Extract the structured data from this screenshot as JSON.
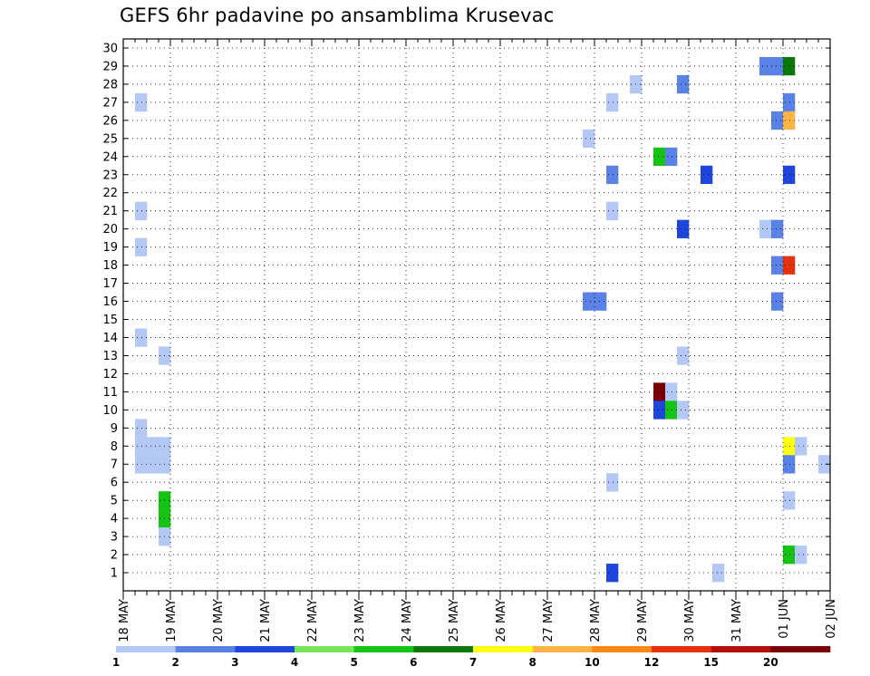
{
  "chart_data": {
    "type": "heatmap",
    "title": "GEFS 6hr padavine po ansamblima Krusevac",
    "y_ticks": [
      "1",
      "2",
      "3",
      "4",
      "5",
      "6",
      "7",
      "8",
      "9",
      "10",
      "11",
      "12",
      "13",
      "14",
      "15",
      "16",
      "17",
      "18",
      "19",
      "20",
      "21",
      "22",
      "23",
      "24",
      "25",
      "26",
      "27",
      "28",
      "29",
      "30"
    ],
    "x_ticks": [
      "18 MAY",
      "19 MAY",
      "20 MAY",
      "21 MAY",
      "22 MAY",
      "23 MAY",
      "24 MAY",
      "25 MAY",
      "26 MAY",
      "27 MAY",
      "28 MAY",
      "29 MAY",
      "30 MAY",
      "31 MAY",
      "01 JUN",
      "02 JUN"
    ],
    "grid": true,
    "colorbar": {
      "labels": [
        "1",
        "2",
        "3",
        "4",
        "5",
        "6",
        "7",
        "8",
        "10",
        "12",
        "15",
        "20"
      ],
      "colors": [
        "#b4c8f5",
        "#5a82e6",
        "#1e46dc",
        "#78e65a",
        "#14c314",
        "#0a780a",
        "#ffff14",
        "#ffb446",
        "#ff8714",
        "#e6320a",
        "#b40f0a",
        "#780000"
      ]
    },
    "x_steps_per_day": 4,
    "cells": [
      [
        30,
        80,
        "#0a780a"
      ],
      [
        30,
        81,
        "#b4c8f5"
      ],
      [
        30,
        123,
        "#b4c8f5"
      ],
      [
        30,
        124,
        "#ffb446"
      ],
      [
        30,
        125,
        "#5a82e6"
      ],
      [
        30,
        126,
        "#14c314"
      ],
      [
        30,
        127,
        "#ffff14"
      ],
      [
        30,
        128,
        "#b4c8f5"
      ],
      [
        30,
        131,
        "#b4c8f5"
      ],
      [
        30,
        132,
        "#5a82e6"
      ],
      [
        29,
        54,
        "#5a82e6"
      ],
      [
        29,
        55,
        "#5a82e6"
      ],
      [
        29,
        56,
        "#0a780a"
      ],
      [
        29,
        89,
        "#1e46dc"
      ],
      [
        29,
        97,
        "#5a82e6"
      ],
      [
        29,
        104,
        "#78e65a"
      ],
      [
        29,
        105,
        "#14c314"
      ],
      [
        29,
        126,
        "#78e65a"
      ],
      [
        29,
        129,
        "#ffff14"
      ],
      [
        29,
        133,
        "#ffb446"
      ],
      [
        29,
        134,
        "#780000"
      ],
      [
        28,
        43,
        "#b4c8f5"
      ],
      [
        28,
        47,
        "#5a82e6"
      ],
      [
        28,
        72,
        "#b4c8f5"
      ],
      [
        28,
        80,
        "#5a82e6"
      ],
      [
        28,
        95,
        "#b4c8f5"
      ],
      [
        28,
        105,
        "#1e46dc"
      ],
      [
        28,
        129,
        "#b4c8f5"
      ],
      [
        28,
        130,
        "#5a82e6"
      ],
      [
        27,
        1,
        "#b4c8f5"
      ],
      [
        27,
        41,
        "#b4c8f5"
      ],
      [
        27,
        56,
        "#5a82e6"
      ],
      [
        27,
        80,
        "#5a82e6"
      ],
      [
        27,
        102,
        "#14c314"
      ],
      [
        27,
        109,
        "#b4c8f5"
      ],
      [
        27,
        110,
        "#b4c8f5"
      ],
      [
        27,
        115,
        "#1e46dc"
      ],
      [
        27,
        116,
        "#1e46dc"
      ],
      [
        27,
        120,
        "#b4c8f5"
      ],
      [
        27,
        121,
        "#b4c8f5"
      ],
      [
        27,
        122,
        "#b4c8f5"
      ],
      [
        27,
        123,
        "#5a82e6"
      ],
      [
        27,
        128,
        "#b4c8f5"
      ],
      [
        27,
        129,
        "#b4c8f5"
      ],
      [
        27,
        130,
        "#5a82e6"
      ],
      [
        27,
        133,
        "#5a82e6"
      ],
      [
        26,
        55,
        "#5a82e6"
      ],
      [
        26,
        56,
        "#ffb446"
      ],
      [
        26,
        95,
        "#b4c8f5"
      ],
      [
        25,
        39,
        "#b4c8f5"
      ],
      [
        25,
        67,
        "#b4c8f5"
      ],
      [
        25,
        68,
        "#b4c8f5"
      ],
      [
        25,
        69,
        "#b4c8f5"
      ],
      [
        25,
        80,
        "#14c314"
      ],
      [
        25,
        132,
        "#ffff14"
      ],
      [
        25,
        133,
        "#14c314"
      ],
      [
        24,
        45,
        "#14c314"
      ],
      [
        24,
        46,
        "#5a82e6"
      ],
      [
        24,
        128,
        "#b4c8f5"
      ],
      [
        24,
        129,
        "#ffb446"
      ],
      [
        24,
        130,
        "#1e46dc"
      ],
      [
        23,
        41,
        "#5a82e6"
      ],
      [
        23,
        49,
        "#1e46dc"
      ],
      [
        23,
        56,
        "#1e46dc"
      ],
      [
        23,
        105,
        "#78e65a"
      ],
      [
        23,
        106,
        "#78e65a"
      ],
      [
        23,
        111,
        "#14c314"
      ],
      [
        23,
        112,
        "#b4c8f5"
      ],
      [
        22,
        87,
        "#ffb446"
      ],
      [
        22,
        90,
        "#b4c8f5"
      ],
      [
        22,
        91,
        "#14c314"
      ],
      [
        22,
        92,
        "#5a82e6"
      ],
      [
        22,
        102,
        "#b4c8f5"
      ],
      [
        22,
        103,
        "#ffb446"
      ],
      [
        21,
        1,
        "#b4c8f5"
      ],
      [
        21,
        41,
        "#b4c8f5"
      ],
      [
        21,
        68,
        "#0a780a"
      ],
      [
        21,
        104,
        "#1e46dc"
      ],
      [
        20,
        47,
        "#1e46dc"
      ],
      [
        20,
        54,
        "#b4c8f5"
      ],
      [
        20,
        55,
        "#5a82e6"
      ],
      [
        20,
        77,
        "#1e46dc"
      ],
      [
        20,
        78,
        "#b4c8f5"
      ],
      [
        20,
        79,
        "#1e46dc"
      ],
      [
        20,
        80,
        "#b4c8f5"
      ],
      [
        20,
        129,
        "#ffb446"
      ],
      [
        20,
        130,
        "#b4c8f5"
      ],
      [
        20,
        131,
        "#5a82e6"
      ],
      [
        20,
        132,
        "#14c314"
      ],
      [
        20,
        133,
        "#5a82e6"
      ],
      [
        19,
        1,
        "#b4c8f5"
      ],
      [
        19,
        66,
        "#78e65a"
      ],
      [
        19,
        67,
        "#b4c8f5"
      ],
      [
        18,
        55,
        "#5a82e6"
      ],
      [
        18,
        56,
        "#e6320a"
      ],
      [
        18,
        128,
        "#b4c8f5"
      ],
      [
        18,
        132,
        "#5a82e6"
      ],
      [
        18,
        133,
        "#b4c8f5"
      ],
      [
        17,
        87,
        "#1e46dc"
      ],
      [
        17,
        88,
        "#0a780a"
      ],
      [
        17,
        95,
        "#b4c8f5"
      ],
      [
        17,
        96,
        "#5a82e6"
      ],
      [
        17,
        97,
        "#5a82e6"
      ],
      [
        17,
        98,
        "#5a82e6"
      ],
      [
        17,
        99,
        "#b4c8f5"
      ],
      [
        16,
        39,
        "#5a82e6"
      ],
      [
        16,
        40,
        "#5a82e6"
      ],
      [
        16,
        55,
        "#5a82e6"
      ],
      [
        16,
        130,
        "#5a82e6"
      ],
      [
        16,
        131,
        "#b4c8f5"
      ],
      [
        16,
        134,
        "#b4c8f5"
      ],
      [
        15,
        110,
        "#ff8714"
      ],
      [
        15,
        111,
        "#ffb446"
      ],
      [
        15,
        134,
        "#1e46dc"
      ],
      [
        14,
        1,
        "#b4c8f5"
      ],
      [
        14,
        67,
        "#b4c8f5"
      ],
      [
        14,
        80,
        "#1e46dc"
      ],
      [
        13,
        3,
        "#b4c8f5"
      ],
      [
        13,
        47,
        "#b4c8f5"
      ],
      [
        13,
        67,
        "#b4c8f5"
      ],
      [
        13,
        77,
        "#b4c8f5"
      ],
      [
        12,
        77,
        "#5a82e6"
      ],
      [
        12,
        80,
        "#0a780a"
      ],
      [
        12,
        81,
        "#1e46dc"
      ],
      [
        12,
        84,
        "#b4c8f5"
      ],
      [
        12,
        95,
        "#b4c8f5"
      ],
      [
        12,
        96,
        "#5a82e6"
      ],
      [
        12,
        101,
        "#b4c8f5"
      ],
      [
        12,
        108,
        "#5a82e6"
      ],
      [
        12,
        109,
        "#b4c8f5"
      ],
      [
        12,
        115,
        "#5a82e6"
      ],
      [
        12,
        116,
        "#b4c8f5"
      ],
      [
        12,
        119,
        "#b4c8f5"
      ],
      [
        12,
        120,
        "#5a82e6"
      ],
      [
        12,
        123,
        "#b4c8f5"
      ],
      [
        11,
        45,
        "#780000"
      ],
      [
        11,
        46,
        "#b4c8f5"
      ],
      [
        11,
        101,
        "#5a82e6"
      ],
      [
        10,
        45,
        "#1e46dc"
      ],
      [
        10,
        46,
        "#14c314"
      ],
      [
        10,
        47,
        "#b4c8f5"
      ],
      [
        10,
        80,
        "#b4c8f5"
      ],
      [
        10,
        81,
        "#b4c8f5"
      ],
      [
        10,
        82,
        "#5a82e6"
      ],
      [
        10,
        83,
        "#5a82e6"
      ],
      [
        10,
        95,
        "#b4c8f5"
      ],
      [
        10,
        96,
        "#1e46dc"
      ],
      [
        10,
        97,
        "#78e65a"
      ],
      [
        10,
        98,
        "#b4c8f5"
      ],
      [
        10,
        99,
        "#5a82e6"
      ],
      [
        10,
        101,
        "#ffb446"
      ],
      [
        10,
        106,
        "#b4c8f5"
      ],
      [
        10,
        132,
        "#b4c8f5"
      ],
      [
        10,
        133,
        "#5a82e6"
      ],
      [
        9,
        1,
        "#b4c8f5"
      ],
      [
        9,
        67,
        "#b4c8f5"
      ],
      [
        9,
        111,
        "#b40f0a"
      ],
      [
        9,
        112,
        "#1e46dc"
      ],
      [
        9,
        128,
        "#ffb446"
      ],
      [
        9,
        131,
        "#1e46dc"
      ],
      [
        9,
        132,
        "#5a82e6"
      ],
      [
        9,
        133,
        "#5a82e6"
      ],
      [
        9,
        134,
        "#ff8714"
      ],
      [
        8,
        1,
        "#b4c8f5"
      ],
      [
        8,
        2,
        "#b4c8f5"
      ],
      [
        8,
        3,
        "#b4c8f5"
      ],
      [
        8,
        56,
        "#ffff14"
      ],
      [
        8,
        57,
        "#b4c8f5"
      ],
      [
        8,
        80,
        "#0a780a"
      ],
      [
        7,
        1,
        "#b4c8f5"
      ],
      [
        7,
        2,
        "#b4c8f5"
      ],
      [
        7,
        3,
        "#b4c8f5"
      ],
      [
        7,
        56,
        "#5a82e6"
      ],
      [
        7,
        59,
        "#b4c8f5"
      ],
      [
        7,
        80,
        "#b4c8f5"
      ],
      [
        7,
        96,
        "#1e46dc"
      ],
      [
        7,
        100,
        "#b4c8f5"
      ],
      [
        7,
        101,
        "#5a82e6"
      ],
      [
        7,
        104,
        "#b4c8f5"
      ],
      [
        7,
        106,
        "#1e46dc"
      ],
      [
        7,
        107,
        "#78e65a"
      ],
      [
        7,
        108,
        "#14c314"
      ],
      [
        7,
        109,
        "#5a82e6"
      ],
      [
        7,
        110,
        "#1e46dc"
      ],
      [
        7,
        111,
        "#1e46dc"
      ],
      [
        7,
        112,
        "#1e46dc"
      ],
      [
        7,
        113,
        "#1e46dc"
      ],
      [
        7,
        114,
        "#0a780a"
      ],
      [
        7,
        115,
        "#1e46dc"
      ],
      [
        7,
        116,
        "#0a780a"
      ],
      [
        7,
        117,
        "#78e65a"
      ],
      [
        7,
        118,
        "#5a82e6"
      ],
      [
        7,
        119,
        "#b4c8f5"
      ],
      [
        7,
        120,
        "#1e46dc"
      ],
      [
        7,
        121,
        "#b4c8f5"
      ],
      [
        7,
        122,
        "#5a82e6"
      ],
      [
        7,
        123,
        "#b4c8f5"
      ],
      [
        6,
        41,
        "#b4c8f5"
      ],
      [
        6,
        88,
        "#b4c8f5"
      ],
      [
        6,
        96,
        "#5a82e6"
      ],
      [
        5,
        3,
        "#14c314"
      ],
      [
        5,
        56,
        "#b4c8f5"
      ],
      [
        5,
        67,
        "#b4c8f5"
      ],
      [
        5,
        80,
        "#78e65a"
      ],
      [
        5,
        96,
        "#1e46dc"
      ],
      [
        5,
        97,
        "#b4c8f5"
      ],
      [
        5,
        110,
        "#ffb446"
      ],
      [
        5,
        111,
        "#14c314"
      ],
      [
        5,
        112,
        "#ffb446"
      ],
      [
        5,
        113,
        "#ff8714"
      ],
      [
        5,
        116,
        "#5a82e6"
      ],
      [
        5,
        117,
        "#b4c8f5"
      ],
      [
        5,
        118,
        "#b4c8f5"
      ],
      [
        4,
        3,
        "#14c314"
      ],
      [
        4,
        86,
        "#b4c8f5"
      ],
      [
        4,
        87,
        "#0a780a"
      ],
      [
        4,
        97,
        "#b4c8f5"
      ],
      [
        3,
        3,
        "#b4c8f5"
      ],
      [
        2,
        56,
        "#14c314"
      ],
      [
        2,
        57,
        "#b4c8f5"
      ],
      [
        2,
        67,
        "#5a82e6"
      ],
      [
        2,
        77,
        "#b4c8f5"
      ],
      [
        2,
        78,
        "#b4c8f5"
      ],
      [
        2,
        128,
        "#78e65a"
      ],
      [
        1,
        41,
        "#1e46dc"
      ],
      [
        1,
        50,
        "#b4c8f5"
      ],
      [
        1,
        84,
        "#78e65a"
      ],
      [
        1,
        85,
        "#ffff14"
      ],
      [
        1,
        86,
        "#ffb446"
      ],
      [
        1,
        88,
        "#1e46dc"
      ],
      [
        1,
        89,
        "#5a82e6"
      ],
      [
        1,
        90,
        "#14c314"
      ],
      [
        1,
        91,
        "#14c314"
      ],
      [
        1,
        92,
        "#14c314"
      ],
      [
        1,
        101,
        "#5a82e6"
      ],
      [
        1,
        106,
        "#78e65a"
      ],
      [
        1,
        108,
        "#b4c8f5"
      ],
      [
        1,
        124,
        "#b4c8f5"
      ]
    ]
  }
}
